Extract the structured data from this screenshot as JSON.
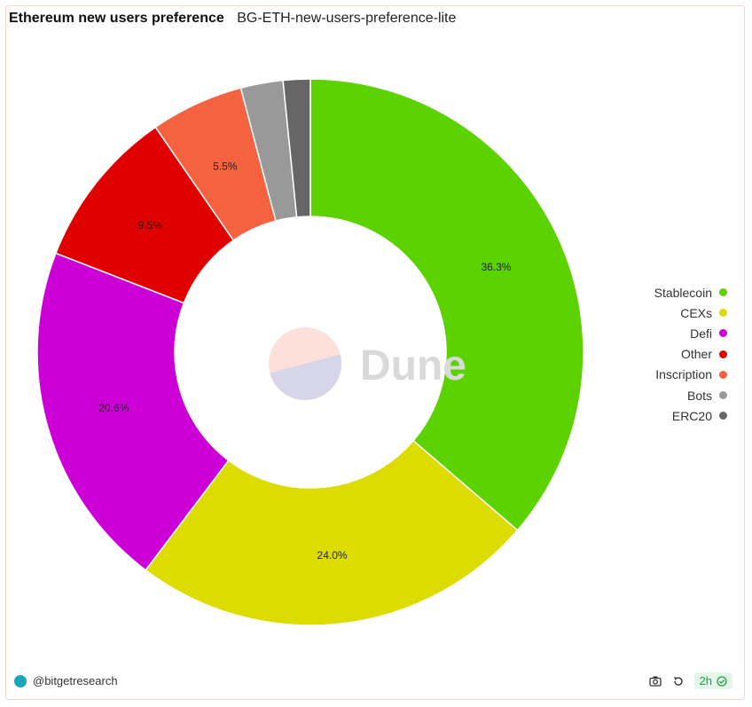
{
  "header": {
    "title": "Ethereum new users preference",
    "subtitle": "BG-ETH-new-users-preference-lite"
  },
  "chart_data": {
    "type": "pie",
    "donut": true,
    "legend_position": "right",
    "slices": [
      {
        "name": "Stablecoin",
        "value": 36.3,
        "label": "36.3%",
        "color": "#5cd200"
      },
      {
        "name": "CEXs",
        "value": 24.0,
        "label": "24.0%",
        "color": "#dddc00"
      },
      {
        "name": "Defi",
        "value": 20.6,
        "label": "20.6%",
        "color": "#cc00d6"
      },
      {
        "name": "Other",
        "value": 9.5,
        "label": "9.5%",
        "color": "#e00000"
      },
      {
        "name": "Inscription",
        "value": 5.5,
        "label": "5.5%",
        "color": "#f4623f"
      },
      {
        "name": "Bots",
        "value": 2.5,
        "label": "",
        "color": "#999999"
      },
      {
        "name": "ERC20",
        "value": 1.6,
        "label": "",
        "color": "#666666"
      }
    ]
  },
  "watermark": {
    "text": "Dune"
  },
  "footer": {
    "author": "@bitgetresearch",
    "refresh_badge": "2h",
    "icons": [
      "camera-icon",
      "refresh-icon",
      "check-circle-icon"
    ],
    "badge_color": "#1e9e45"
  }
}
